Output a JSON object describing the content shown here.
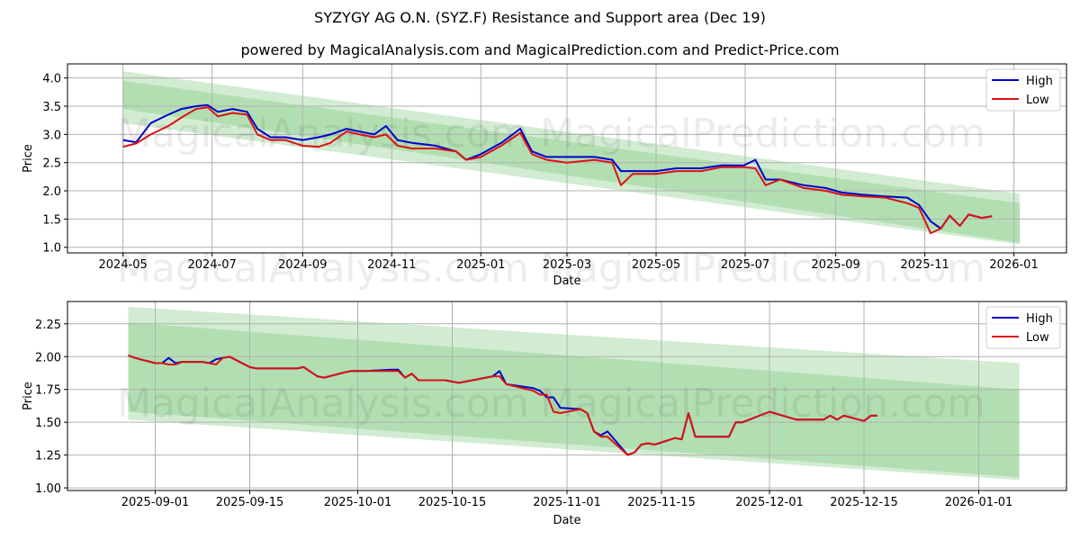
{
  "title": "SYZYGY AG O.N. (SYZ.F) Resistance and Support area (Dec 19)",
  "subtitle": "powered by MagicalAnalysis.com and MagicalPrediction.com and Predict-Price.com",
  "watermarks": [
    "MagicalAnalysis.com",
    "MagicalPrediction.com"
  ],
  "colors": {
    "high": "#0000cc",
    "low": "#dd1111",
    "band": "#6abf69",
    "grid": "#b0b0b0"
  },
  "legend": {
    "high_label": "High",
    "low_label": "Low"
  },
  "chart_data": [
    {
      "type": "line",
      "title": "SYZYGY AG O.N. (SYZ.F) Resistance and Support area (Dec 19)",
      "xlabel": "Date",
      "ylabel": "Price",
      "ylim": [
        0.9,
        4.25
      ],
      "yticks": [
        1.0,
        1.5,
        2.0,
        2.5,
        3.0,
        3.5,
        4.0
      ],
      "xticks": [
        "2024-05",
        "2024-07",
        "2024-09",
        "2024-11",
        "2025-01",
        "2025-03",
        "2025-05",
        "2025-07",
        "2025-09",
        "2025-11",
        "2026-01"
      ],
      "grid": true,
      "legend_position": "upper right",
      "bands": [
        {
          "name": "outer",
          "x": [
            "2024-05-01",
            "2026-01-05"
          ],
          "upper": [
            4.12,
            1.95
          ],
          "lower": [
            3.2,
            1.05
          ],
          "opacity": 0.3
        },
        {
          "name": "inner",
          "x": [
            "2024-05-01",
            "2026-01-05"
          ],
          "upper": [
            3.95,
            1.78
          ],
          "lower": [
            3.45,
            1.08
          ],
          "opacity": 0.3
        }
      ],
      "x": [
        "2024-05-01",
        "2024-05-10",
        "2024-05-20",
        "2024-06-01",
        "2024-06-10",
        "2024-06-20",
        "2024-06-28",
        "2024-07-05",
        "2024-07-15",
        "2024-07-25",
        "2024-08-01",
        "2024-08-10",
        "2024-08-20",
        "2024-09-01",
        "2024-09-12",
        "2024-09-20",
        "2024-10-01",
        "2024-10-10",
        "2024-10-20",
        "2024-10-28",
        "2024-11-05",
        "2024-11-15",
        "2024-12-01",
        "2024-12-15",
        "2024-12-22",
        "2025-01-01",
        "2025-01-15",
        "2025-01-28",
        "2025-02-05",
        "2025-02-15",
        "2025-03-01",
        "2025-03-20",
        "2025-04-01",
        "2025-04-07",
        "2025-04-15",
        "2025-05-01",
        "2025-05-15",
        "2025-06-01",
        "2025-06-15",
        "2025-06-30",
        "2025-07-08",
        "2025-07-15",
        "2025-07-25",
        "2025-08-10",
        "2025-08-25",
        "2025-09-05",
        "2025-09-20",
        "2025-10-05",
        "2025-10-20",
        "2025-10-28",
        "2025-11-05",
        "2025-11-12",
        "2025-11-18",
        "2025-11-25",
        "2025-12-01",
        "2025-12-10",
        "2025-12-17"
      ],
      "series": [
        {
          "name": "High",
          "values": [
            2.9,
            2.86,
            3.2,
            3.35,
            3.45,
            3.5,
            3.52,
            3.4,
            3.45,
            3.4,
            3.1,
            2.95,
            2.95,
            2.9,
            2.95,
            3.0,
            3.1,
            3.05,
            3.0,
            3.15,
            2.9,
            2.85,
            2.8,
            2.7,
            2.55,
            2.65,
            2.85,
            3.1,
            2.7,
            2.6,
            2.6,
            2.6,
            2.55,
            2.35,
            2.35,
            2.35,
            2.4,
            2.4,
            2.45,
            2.45,
            2.55,
            2.2,
            2.2,
            2.1,
            2.05,
            1.97,
            1.93,
            1.9,
            1.88,
            1.75,
            1.46,
            1.33,
            1.56,
            1.38,
            1.58,
            1.52,
            1.55
          ]
        },
        {
          "name": "Low",
          "values": [
            2.78,
            2.84,
            3.0,
            3.15,
            3.3,
            3.45,
            3.48,
            3.32,
            3.38,
            3.35,
            3.0,
            2.9,
            2.9,
            2.8,
            2.78,
            2.85,
            3.05,
            3.0,
            2.95,
            3.0,
            2.8,
            2.75,
            2.75,
            2.7,
            2.55,
            2.6,
            2.8,
            3.03,
            2.65,
            2.55,
            2.5,
            2.55,
            2.5,
            2.1,
            2.3,
            2.3,
            2.35,
            2.35,
            2.42,
            2.42,
            2.4,
            2.1,
            2.2,
            2.05,
            2.0,
            1.93,
            1.9,
            1.88,
            1.78,
            1.7,
            1.25,
            1.33,
            1.56,
            1.38,
            1.58,
            1.52,
            1.55
          ]
        }
      ]
    },
    {
      "type": "line",
      "title": "",
      "xlabel": "Date",
      "ylabel": "Price",
      "ylim": [
        0.98,
        2.42
      ],
      "yticks": [
        1.0,
        1.25,
        1.5,
        1.75,
        2.0,
        2.25
      ],
      "xticks": [
        "2025-09-01",
        "2025-09-15",
        "2025-10-01",
        "2025-10-15",
        "2025-11-01",
        "2025-11-15",
        "2025-12-01",
        "2025-12-15",
        "2026-01-01"
      ],
      "grid": true,
      "legend_position": "upper right",
      "bands": [
        {
          "name": "outer",
          "x": [
            "2025-08-28",
            "2026-01-07"
          ],
          "upper": [
            2.38,
            1.95
          ],
          "lower": [
            1.52,
            1.06
          ],
          "opacity": 0.3
        },
        {
          "name": "inner",
          "x": [
            "2025-08-28",
            "2026-01-07"
          ],
          "upper": [
            2.26,
            1.75
          ],
          "lower": [
            1.58,
            1.08
          ],
          "opacity": 0.3
        }
      ],
      "x": [
        "2025-08-28",
        "2025-08-29",
        "2025-09-01",
        "2025-09-02",
        "2025-09-03",
        "2025-09-04",
        "2025-09-05",
        "2025-09-08",
        "2025-09-09",
        "2025-09-10",
        "2025-09-11",
        "2025-09-12",
        "2025-09-15",
        "2025-09-16",
        "2025-09-22",
        "2025-09-23",
        "2025-09-25",
        "2025-09-26",
        "2025-09-29",
        "2025-09-30",
        "2025-10-01",
        "2025-10-02",
        "2025-10-06",
        "2025-10-07",
        "2025-10-08",
        "2025-10-09",
        "2025-10-10",
        "2025-10-13",
        "2025-10-14",
        "2025-10-16",
        "2025-10-20",
        "2025-10-21",
        "2025-10-22",
        "2025-10-23",
        "2025-10-27",
        "2025-10-28",
        "2025-10-29",
        "2025-10-30",
        "2025-10-31",
        "2025-11-03",
        "2025-11-04",
        "2025-11-05",
        "2025-11-06",
        "2025-11-07",
        "2025-11-10",
        "2025-11-11",
        "2025-11-12",
        "2025-11-13",
        "2025-11-14",
        "2025-11-17",
        "2025-11-18",
        "2025-11-19",
        "2025-11-20",
        "2025-11-24",
        "2025-11-25",
        "2025-11-26",
        "2025-11-27",
        "2025-12-01",
        "2025-12-03",
        "2025-12-05",
        "2025-12-08",
        "2025-12-09",
        "2025-12-10",
        "2025-12-11",
        "2025-12-12",
        "2025-12-15",
        "2025-12-16",
        "2025-12-17"
      ],
      "series": [
        {
          "name": "High",
          "values": [
            2.01,
            1.99,
            1.95,
            1.95,
            1.99,
            1.95,
            1.96,
            1.96,
            1.95,
            1.98,
            1.99,
            2.0,
            1.92,
            1.91,
            1.91,
            1.92,
            1.85,
            1.84,
            1.88,
            1.89,
            1.89,
            1.89,
            1.9,
            1.9,
            1.84,
            1.87,
            1.82,
            1.82,
            1.82,
            1.8,
            1.84,
            1.85,
            1.89,
            1.79,
            1.76,
            1.74,
            1.69,
            1.69,
            1.61,
            1.6,
            1.57,
            1.43,
            1.4,
            1.43,
            1.25,
            1.27,
            1.33,
            1.34,
            1.33,
            1.38,
            1.37,
            1.57,
            1.39,
            1.39,
            1.39,
            1.5,
            1.5,
            1.58,
            1.55,
            1.52,
            1.52,
            1.52,
            1.55,
            1.52,
            1.55,
            1.51,
            1.55,
            1.55
          ]
        },
        {
          "name": "Low",
          "values": [
            2.01,
            1.99,
            1.95,
            1.95,
            1.94,
            1.94,
            1.96,
            1.96,
            1.95,
            1.94,
            1.99,
            2.0,
            1.92,
            1.91,
            1.91,
            1.92,
            1.85,
            1.84,
            1.88,
            1.89,
            1.89,
            1.89,
            1.89,
            1.89,
            1.84,
            1.87,
            1.82,
            1.82,
            1.82,
            1.8,
            1.84,
            1.85,
            1.85,
            1.79,
            1.74,
            1.71,
            1.71,
            1.58,
            1.57,
            1.6,
            1.57,
            1.43,
            1.39,
            1.39,
            1.25,
            1.27,
            1.33,
            1.34,
            1.33,
            1.38,
            1.37,
            1.57,
            1.39,
            1.39,
            1.39,
            1.5,
            1.5,
            1.58,
            1.55,
            1.52,
            1.52,
            1.52,
            1.55,
            1.52,
            1.55,
            1.51,
            1.55,
            1.55
          ]
        }
      ]
    }
  ]
}
